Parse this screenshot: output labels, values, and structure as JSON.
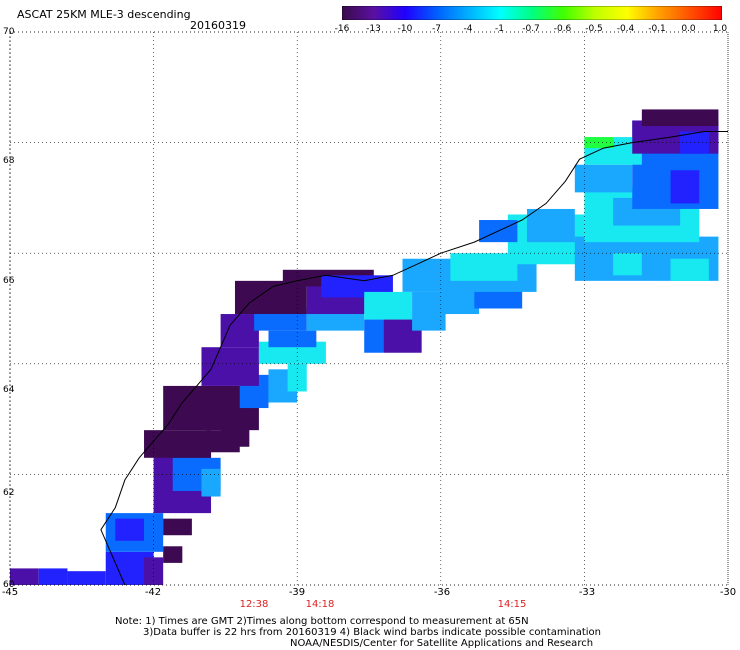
{
  "header": {
    "title": "ASCAT 25KM MLE-3 descending",
    "date": "20160319"
  },
  "colorbar": {
    "tick_labels": [
      "-16",
      "-13",
      "-10",
      "-7",
      "-4",
      "-1",
      "-0.7",
      "-0.6",
      "-0.5",
      "-0.4",
      "-0.1",
      "0.0",
      "1.0"
    ],
    "colors": [
      "#3a0a4a",
      "#5a10a0",
      "#2000ff",
      "#0060ff",
      "#00b0ff",
      "#00ffff",
      "#00ff80",
      "#40ff00",
      "#c0ff00",
      "#ffff00",
      "#ffa000",
      "#ff5000",
      "#ff0000"
    ]
  },
  "axes": {
    "lat_labels": [
      "70",
      "68",
      "66",
      "64",
      "62",
      "60"
    ],
    "lon_labels": [
      "-45",
      "-42",
      "-39",
      "-36",
      "-33",
      "-30"
    ],
    "lat_range": [
      60,
      70
    ],
    "lon_range": [
      -45,
      -30
    ],
    "grid": "dotted"
  },
  "times": [
    {
      "label": "12:38",
      "lon": -40.2
    },
    {
      "label": "14:18",
      "lon": -38.5
    },
    {
      "label": "14:15",
      "lon": -34.6
    }
  ],
  "notes": {
    "line1": "Note: 1) Times are GMT 2)Times along bottom correspond to measurement at 65N",
    "line2": "3)Data buffer is 22 hrs from 20160319 4) Black wind barbs indicate possible contamination",
    "line3": "NOAA/NESDIS/Center for Satellite Applications and Research"
  },
  "colors": {
    "dark_purple": "#3d0a52",
    "purple": "#4a10a8",
    "blue": "#2222ff",
    "mid_blue": "#0a6cff",
    "light_blue": "#1aa8ff",
    "cyan": "#18e8f0",
    "green": "#20ff40"
  }
}
